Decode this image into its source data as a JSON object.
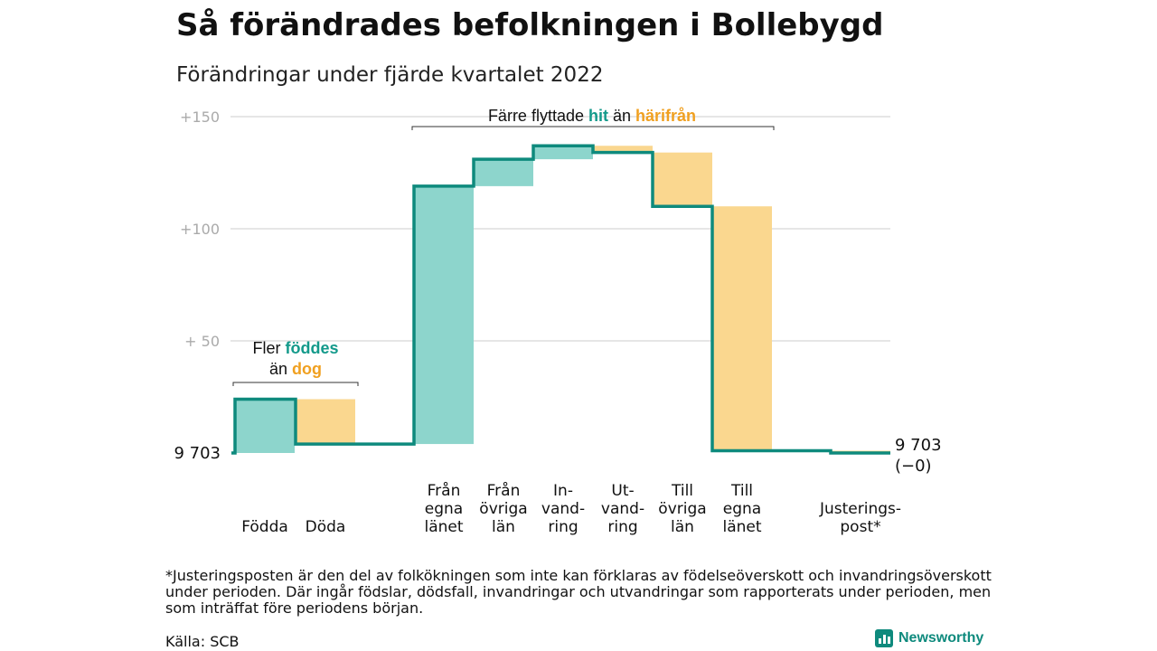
{
  "title": "Så förändrades befolkningen i Bollebygd",
  "subtitle": "Förändringar under fjärde kvartalet 2022",
  "footnote": "*Justeringsposten är den del av folkökningen som inte kan förklaras av födelseöverskott och invandringsöverskott under perioden. Där ingår födslar, dödsfall, invandringar och utvandringar som rapporterats under perioden, men som inträffat före periodens början.",
  "source": "Källa: SCB",
  "brand": "Newsworthy",
  "colors": {
    "positive": "#8dd5cc",
    "negative": "#fad78f",
    "line": "#0e8a7d",
    "hit": "#149a8b",
    "harifran": "#f0a020",
    "axis": "#aaaaaa",
    "grid": "#dddddd"
  },
  "chart_data": {
    "type": "waterfall",
    "start_value_label": "9 703",
    "end_value_label": "9 703",
    "end_change_label": "(−0)",
    "y_ticks": [
      {
        "value": 50,
        "label": "+ 50"
      },
      {
        "value": 100,
        "label": "+100"
      },
      {
        "value": 150,
        "label": "+150"
      }
    ],
    "ylim": [
      0,
      150
    ],
    "steps": [
      {
        "label": "Födda",
        "delta": 24,
        "from": 0,
        "to": 24
      },
      {
        "label": "Döda",
        "delta": -20,
        "from": 24,
        "to": 4
      },
      {
        "label": "Från egna länet",
        "delta": 115,
        "from": 4,
        "to": 119
      },
      {
        "label": "Från övriga län",
        "delta": 12,
        "from": 119,
        "to": 131
      },
      {
        "label": "In-vand-ring",
        "delta": 6,
        "from": 131,
        "to": 137
      },
      {
        "label": "Ut-vand-ring",
        "delta": -3,
        "from": 137,
        "to": 134
      },
      {
        "label": "Till övriga län",
        "delta": -24,
        "from": 134,
        "to": 110
      },
      {
        "label": "Till egna länet",
        "delta": -109,
        "from": 110,
        "to": 1
      },
      {
        "label": "Justerings-post*",
        "delta": -1,
        "from": 1,
        "to": 0
      }
    ],
    "category_labels": [
      [
        "Födda"
      ],
      [
        "Döda"
      ],
      [
        "Från",
        "egna",
        "länet"
      ],
      [
        "Från",
        "övriga",
        "län"
      ],
      [
        "In-",
        "vand-",
        "ring"
      ],
      [
        "Ut-",
        "vand-",
        "ring"
      ],
      [
        "Till",
        "övriga",
        "län"
      ],
      [
        "Till",
        "egna",
        "länet"
      ],
      [
        "Justerings-",
        "post*"
      ]
    ],
    "annotations": [
      {
        "lines": [
          [
            [
              "Fler ",
              "plain"
            ],
            [
              "föddes",
              "hit"
            ]
          ],
          [
            [
              "än ",
              "plain"
            ],
            [
              "dog",
              "harifran"
            ]
          ]
        ]
      },
      {
        "lines": [
          [
            [
              "Färre flyttade ",
              "plain"
            ],
            [
              "hit",
              "hit"
            ],
            [
              " än ",
              "plain"
            ],
            [
              "härifrån",
              "harifran"
            ]
          ]
        ]
      }
    ]
  }
}
